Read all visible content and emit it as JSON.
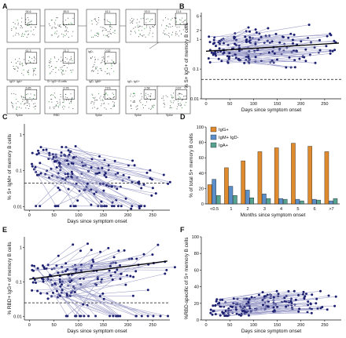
{
  "panels": {
    "a": {
      "label": "A",
      "gate_values": [
        "94.6",
        "85.5",
        "16.1",
        "93.5",
        "13.4",
        "61.3",
        "21.2",
        "0.52",
        "6.85",
        "0.76",
        "71%",
        "1.58",
        "0.67"
      ],
      "gate_titles": [
        "IgD-",
        "IgG+ IgA+",
        "S+ IgG+ B cells",
        "IgD- IgM+",
        "IgD- IgG+"
      ],
      "gate_axis": [
        "Spike",
        "RBD",
        "Spike",
        "Spike",
        "Spike"
      ]
    },
    "b": {
      "label": "B"
    },
    "c": {
      "label": "C"
    },
    "d": {
      "label": "D"
    },
    "e": {
      "label": "E"
    },
    "f": {
      "label": "F"
    }
  },
  "colors": {
    "igg": "#e08a2e",
    "igm": "#5b8fc9",
    "iga": "#57a391",
    "dot": "#1d2070",
    "line": "#9c9dc9"
  },
  "chart_data": [
    {
      "id": "B",
      "type": "scatter",
      "xlabel": "Days since symptom onset",
      "ylabel": "% S+ IgG+ of memory B cells",
      "scale": "log",
      "xticks": [
        "0",
        "50",
        "100",
        "150",
        "200",
        "250"
      ],
      "yticks": [
        "0.01",
        "0.1",
        "1",
        "2",
        "6"
      ],
      "xlim": [
        -10,
        285
      ],
      "ylim": [
        0.01,
        8
      ],
      "threshold": 0.045,
      "trend": {
        "x": [
          0,
          280
        ],
        "y": [
          0.4,
          0.75
        ]
      }
    },
    {
      "id": "C",
      "type": "scatter",
      "xlabel": "Days since symptom onset",
      "ylabel": "% S+ IgM+ of memory B cells",
      "scale": "log",
      "xticks": [
        "0",
        "50",
        "100",
        "150",
        "200",
        "250"
      ],
      "yticks": [
        "0.01",
        "0.1",
        "1"
      ],
      "xlim": [
        -10,
        285
      ],
      "ylim": [
        0.008,
        2
      ],
      "threshold": 0.045
    },
    {
      "id": "D",
      "type": "bar",
      "xlabel": "Months since symptom onset",
      "ylabel": "% of total S+ memory B cells",
      "categories": [
        "<0.5",
        "1",
        "2",
        "3",
        "4",
        "5",
        "6",
        ">7"
      ],
      "ylim": [
        0,
        100
      ],
      "yticks": [
        "0",
        "20",
        "40",
        "60",
        "80",
        "100"
      ],
      "legend": [
        "IgG+",
        "IgM+ IgD-",
        "IgA+"
      ],
      "series": [
        {
          "name": "IgG+",
          "values": [
            25,
            47,
            56,
            68,
            73,
            79,
            75,
            68
          ]
        },
        {
          "name": "IgM+ IgD-",
          "values": [
            32,
            23,
            18,
            13,
            7,
            6,
            6,
            4
          ]
        },
        {
          "name": "IgA+",
          "values": [
            11,
            11,
            8,
            7,
            6,
            4,
            5,
            7
          ]
        }
      ]
    },
    {
      "id": "E",
      "type": "scatter",
      "xlabel": "Days since symptom onset",
      "ylabel": "% RBD+ IgG+ of memory B cells",
      "scale": "log",
      "xticks": [
        "0",
        "50",
        "100",
        "150",
        "200",
        "250"
      ],
      "yticks": [
        "0.01",
        "0.1",
        "1"
      ],
      "xlim": [
        -10,
        285
      ],
      "ylim": [
        0.008,
        2
      ],
      "threshold": 0.025,
      "trend": {
        "x": [
          0,
          280
        ],
        "y": [
          0.12,
          0.4
        ]
      }
    },
    {
      "id": "F",
      "type": "scatter",
      "xlabel": "Days since symptom onset",
      "ylabel": "%RBD-specific of S+ memory B cells",
      "scale": "linear",
      "xticks": [
        "0",
        "50",
        "100",
        "150",
        "200",
        "250"
      ],
      "yticks": [
        "0",
        "20",
        "40",
        "60",
        "80",
        "100"
      ],
      "xlim": [
        -10,
        285
      ],
      "ylim": [
        0,
        100
      ]
    }
  ]
}
